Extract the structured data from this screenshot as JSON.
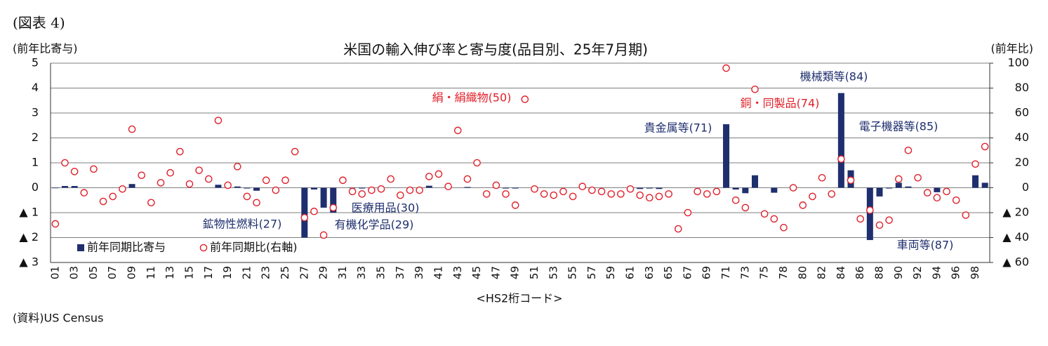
{
  "chart_data": {
    "type": "bar",
    "figure_label": "(図表 4)",
    "title": "米国の輸入伸び率と寄与度(品目別、25年7月期)",
    "y_label": "(前年比寄与)",
    "y2_label": "(前年比)",
    "x_label": "<HS2桁コード>",
    "source": "(資料)US Census",
    "grid": true,
    "legend": "lower left",
    "categories": [
      "01",
      null,
      "03",
      null,
      "05",
      null,
      "07",
      null,
      "09",
      null,
      "11",
      null,
      "13",
      null,
      "15",
      null,
      "17",
      null,
      "19",
      null,
      "21",
      null,
      "23",
      null,
      "25",
      null,
      "27",
      null,
      "29",
      null,
      "31",
      null,
      "33",
      null,
      "35",
      null,
      "37",
      null,
      "39",
      null,
      "41",
      null,
      "43",
      null,
      "45",
      null,
      "47",
      null,
      "49",
      null,
      "51",
      null,
      "53",
      null,
      "55",
      null,
      "57",
      null,
      "59",
      null,
      "61",
      null,
      "63",
      null,
      "65",
      null,
      "67",
      null,
      "69",
      null,
      "71",
      null,
      "73",
      null,
      "75",
      null,
      "78",
      null,
      "80",
      null,
      "82",
      null,
      "84",
      null,
      "86",
      null,
      "88",
      null,
      "90",
      null,
      "92",
      null,
      "94",
      null,
      "96",
      null,
      "98",
      null
    ],
    "ylim": [
      -3,
      5
    ],
    "yticks": [
      {
        "value": -3,
        "label": "▲ 3"
      },
      {
        "value": -2,
        "label": "▲ 2"
      },
      {
        "value": -1,
        "label": "▲ 1"
      },
      0,
      1,
      2,
      3,
      4,
      5
    ],
    "y2lim": [
      -60,
      100
    ],
    "y2ticks": [
      {
        "value": -60,
        "label": "▲ 60"
      },
      {
        "value": -40,
        "label": "▲ 40"
      },
      {
        "value": -20,
        "label": "▲ 20"
      },
      0,
      20,
      40,
      60,
      80,
      100
    ],
    "series": [
      {
        "name": "前年同期比寄与",
        "type": "bar",
        "color": "#1f2f6e",
        "values": [
          -0.02,
          0.07,
          0.07,
          0,
          0,
          0,
          0,
          0,
          0.15,
          0,
          0,
          0,
          0,
          0,
          0,
          0,
          0,
          0.12,
          0,
          0.05,
          -0.03,
          -0.12,
          0,
          0,
          0,
          0,
          -2.0,
          -0.07,
          -0.8,
          -1.0,
          0,
          -0.02,
          -0.03,
          -0.02,
          0,
          0,
          0,
          0,
          0,
          0.08,
          0,
          0,
          0,
          0.03,
          0,
          0,
          0,
          -0.03,
          -0.03,
          0,
          0,
          0,
          0,
          0,
          0,
          0,
          0,
          0,
          0,
          0,
          0,
          -0.05,
          -0.03,
          -0.05,
          0,
          0,
          0,
          0,
          0,
          0,
          2.55,
          -0.07,
          -0.22,
          0.5,
          0,
          -0.2,
          0,
          0,
          0,
          0,
          0,
          0,
          3.8,
          0.7,
          0,
          -2.1,
          -0.35,
          -0.03,
          0.2,
          0.05,
          0,
          0,
          -0.18,
          0,
          0,
          0,
          0.5,
          0.2
        ]
      },
      {
        "name": "前年同期比(右軸)",
        "type": "scatter",
        "axis": "y2",
        "color": "#e0202a",
        "values": [
          -29,
          20,
          13,
          -4,
          15,
          -11,
          -7,
          -1,
          47,
          10,
          -12,
          4,
          12,
          29,
          3,
          14,
          7,
          54,
          2,
          17,
          -7,
          -12,
          6,
          -2,
          6,
          29,
          -24,
          -19,
          -38,
          -16,
          6,
          -3,
          -5,
          -2,
          -1,
          7,
          -6,
          -2,
          -2,
          9,
          11,
          1,
          46,
          7,
          20,
          -5,
          2,
          -5,
          -14,
          71,
          -1,
          -5,
          -6,
          -3,
          -7,
          1,
          -2,
          -3,
          -5,
          -5,
          -1,
          -6,
          -8,
          -7,
          -5,
          -33,
          -20,
          -3,
          -5,
          -3,
          96,
          -10,
          -16,
          79,
          -21,
          -25,
          -32,
          0,
          -14,
          -7,
          8,
          -5,
          23,
          6,
          -25,
          -18,
          -30,
          -26,
          7,
          30,
          8,
          -4,
          -8,
          -3,
          -10,
          -22,
          19,
          33
        ]
      }
    ],
    "annotations": [
      {
        "text": "鉱物性燃料(27)",
        "color": "#1f2f6e"
      },
      {
        "text": "有機化学品(29)",
        "color": "#1f2f6e"
      },
      {
        "text": "医療用品(30)",
        "color": "#1f2f6e"
      },
      {
        "text": "絹・絹織物(50)",
        "color": "#e0202a"
      },
      {
        "text": "貴金属等(71)",
        "color": "#1f2f6e"
      },
      {
        "text": "銅・同製品(74)",
        "color": "#e0202a"
      },
      {
        "text": "機械類等(84)",
        "color": "#1f2f6e"
      },
      {
        "text": "電子機器等(85)",
        "color": "#1f2f6e"
      },
      {
        "text": "車両等(87)",
        "color": "#1f2f6e"
      }
    ]
  }
}
